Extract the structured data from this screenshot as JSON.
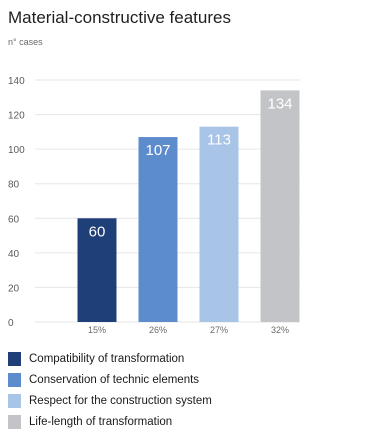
{
  "chart_data": {
    "type": "bar",
    "title": "Material-constructive features",
    "ylabel": "n° cases",
    "xlabel": "",
    "ylim": [
      0,
      140
    ],
    "yticks": [
      0,
      20,
      40,
      60,
      80,
      100,
      120,
      140
    ],
    "categories": [
      "15%",
      "26%",
      "27%",
      "32%"
    ],
    "values": [
      60,
      107,
      113,
      134
    ],
    "colors": [
      "#1f3f78",
      "#5d8ccc",
      "#a8c5e8",
      "#c2c4c8"
    ],
    "legend": [
      {
        "label": "Compatibility of transformation",
        "color": "#1f3f78"
      },
      {
        "label": "Conservation of technic elements",
        "color": "#5d8ccc"
      },
      {
        "label": "Respect for the construction system",
        "color": "#a8c5e8"
      },
      {
        "label": "Life-length of transformation",
        "color": "#c2c4c8"
      }
    ],
    "grid": true,
    "legend_position": "bottom"
  }
}
